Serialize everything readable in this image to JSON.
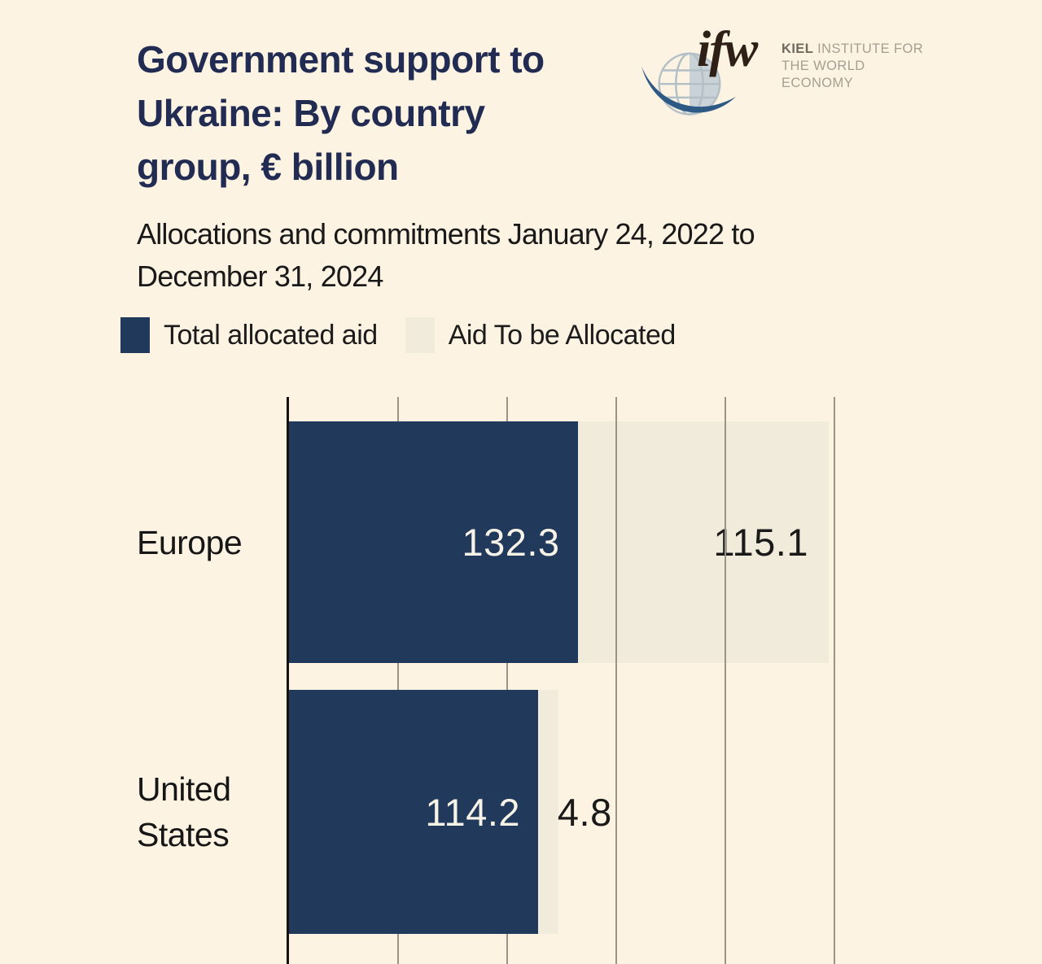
{
  "header": {
    "title": "Government support to\nUkraine: By country\ngroup, € billion",
    "subtitle": "Allocations and commitments January 24, 2022 to\nDecember 31, 2024"
  },
  "logo": {
    "wordmark": "ifw",
    "kiel": "KIEL",
    "line1_rest": "INSTITUTE FOR",
    "line2": "THE WORLD ECONOMY"
  },
  "legend": [
    {
      "label": "Total allocated aid",
      "color": "#213a5c"
    },
    {
      "label": "Aid To be Allocated",
      "color": "#f1ebdb"
    }
  ],
  "colors": {
    "background": "#fdf3e3",
    "bar_allocated": "#213a5c",
    "bar_to_be_allocated": "#f1ebdb",
    "gridline": "#9a9488",
    "axis": "#17120b",
    "title_text": "#222c52",
    "body_text": "#191919",
    "value_label_light": "#f8f3e7",
    "value_label_dark": "#1a1a1a",
    "logo_swoosh": "#2d5a84",
    "logo_globe": "#b3bfc6",
    "logo_wordmark": "#2f2017"
  },
  "chart_data": {
    "type": "bar",
    "orientation": "horizontal",
    "stacked": true,
    "title": "Government support to Ukraine: By country group, € billion",
    "subtitle": "Allocations and commitments January 24, 2022 to December 31, 2024",
    "categories": [
      "Europe",
      "United States"
    ],
    "series": [
      {
        "name": "Total allocated aid",
        "values": [
          132.3,
          114.2
        ],
        "color": "#213a5c"
      },
      {
        "name": "Aid To be Allocated",
        "values": [
          115.1,
          4.8
        ],
        "color": "#f1ebdb"
      }
    ],
    "xlim": [
      0,
      250
    ],
    "gridline_interval": 50,
    "grid": true,
    "tick_labels_shown": false,
    "legend_position": "top",
    "value_labels": true
  }
}
